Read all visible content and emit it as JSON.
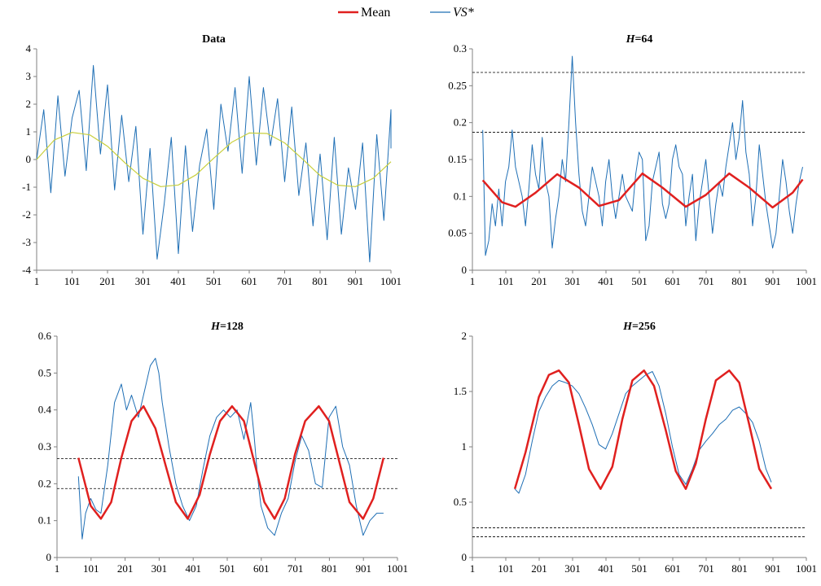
{
  "legend": {
    "items": [
      {
        "label": "Mean",
        "color": "#e0201f"
      },
      {
        "label": "VS*",
        "color": "#1f6fb5"
      }
    ]
  },
  "chart_data": [
    {
      "type": "line",
      "title": "Data",
      "title_prefix": "",
      "title_suffix": "",
      "xlabel": "",
      "ylabel": "",
      "xlim": [
        1,
        1001
      ],
      "ylim": [
        -4,
        4
      ],
      "xticks": [
        1,
        101,
        201,
        301,
        401,
        501,
        601,
        701,
        801,
        901,
        1001
      ],
      "yticks": [
        -4,
        -3,
        -2,
        -1,
        0,
        1,
        2,
        3,
        4
      ],
      "ytick_labels": [
        "-4",
        "-3",
        "-2",
        "-1",
        "0",
        "1",
        "2",
        "3",
        "4"
      ],
      "hlines": [],
      "series": [
        {
          "role": "noisy-data",
          "color": "#1f6fb5",
          "width": 1,
          "x": [
            1,
            21,
            41,
            61,
            81,
            101,
            121,
            141,
            161,
            181,
            201,
            221,
            241,
            261,
            281,
            301,
            321,
            341,
            361,
            381,
            401,
            421,
            441,
            461,
            481,
            501,
            521,
            541,
            561,
            581,
            601,
            621,
            641,
            661,
            681,
            701,
            721,
            741,
            761,
            781,
            801,
            821,
            841,
            861,
            881,
            901,
            921,
            941,
            961,
            981,
            1001,
            1021
          ],
          "y": [
            0.0,
            1.8,
            -1.2,
            2.3,
            -0.6,
            1.5,
            2.5,
            -0.4,
            3.4,
            0.2,
            2.7,
            -1.1,
            1.6,
            -0.8,
            1.2,
            -2.7,
            0.4,
            -3.6,
            -1.6,
            0.8,
            -3.4,
            0.5,
            -2.6,
            -0.2,
            1.1,
            -1.8,
            2.0,
            0.3,
            2.6,
            -0.5,
            3.0,
            -0.2,
            2.6,
            0.5,
            2.2,
            -0.8,
            1.9,
            -1.3,
            0.6,
            -2.4,
            0.2,
            -2.9,
            0.8,
            -2.7,
            -0.3,
            -1.8,
            0.6,
            -3.7,
            0.9,
            -2.2,
            1.8,
            0.4
          ]
        },
        {
          "role": "underlying-sine",
          "color": "#c8cf3c",
          "width": 1.2,
          "x": [
            1,
            51,
            101,
            151,
            201,
            251,
            301,
            351,
            401,
            451,
            501,
            551,
            601,
            651,
            701,
            751,
            801,
            851,
            901,
            951,
            1001
          ],
          "y": [
            0.0,
            0.71,
            0.98,
            0.89,
            0.48,
            -0.13,
            -0.68,
            -0.98,
            -0.92,
            -0.55,
            0.05,
            0.62,
            0.96,
            0.94,
            0.6,
            0.02,
            -0.58,
            -0.93,
            -0.98,
            -0.68,
            -0.08
          ]
        }
      ]
    },
    {
      "type": "line",
      "title": "=64",
      "title_prefix": "H",
      "title_suffix": "=64",
      "xlabel": "",
      "ylabel": "",
      "xlim": [
        1,
        1001
      ],
      "ylim": [
        0,
        0.3
      ],
      "xticks": [
        1,
        101,
        201,
        301,
        401,
        501,
        601,
        701,
        801,
        901,
        1001
      ],
      "yticks": [
        0,
        0.05,
        0.1,
        0.15,
        0.2,
        0.25,
        0.3
      ],
      "ytick_labels": [
        "0",
        "0.05",
        "0.1",
        "0.15",
        "0.2",
        "0.25",
        "0.3"
      ],
      "hlines": [
        0.187,
        0.268
      ],
      "series": [
        {
          "name": "VS*",
          "color": "#1f6fb5",
          "width": 1,
          "x": [
            32,
            40,
            50,
            60,
            70,
            80,
            90,
            100,
            110,
            120,
            130,
            140,
            150,
            160,
            170,
            180,
            190,
            200,
            210,
            220,
            230,
            240,
            250,
            260,
            270,
            280,
            290,
            300,
            310,
            320,
            330,
            340,
            350,
            360,
            370,
            380,
            390,
            400,
            410,
            420,
            430,
            440,
            450,
            460,
            470,
            480,
            490,
            500,
            510,
            520,
            530,
            540,
            550,
            560,
            570,
            580,
            590,
            600,
            610,
            620,
            630,
            640,
            650,
            660,
            670,
            680,
            690,
            700,
            710,
            720,
            730,
            740,
            750,
            760,
            770,
            780,
            790,
            800,
            810,
            820,
            830,
            840,
            850,
            860,
            870,
            880,
            890,
            900,
            910,
            920,
            930,
            940,
            950,
            960,
            970,
            980,
            990
          ],
          "y": [
            0.19,
            0.02,
            0.04,
            0.09,
            0.06,
            0.11,
            0.06,
            0.12,
            0.14,
            0.19,
            0.14,
            0.12,
            0.1,
            0.06,
            0.11,
            0.17,
            0.13,
            0.11,
            0.18,
            0.12,
            0.1,
            0.03,
            0.07,
            0.1,
            0.15,
            0.12,
            0.2,
            0.29,
            0.2,
            0.13,
            0.08,
            0.06,
            0.1,
            0.14,
            0.12,
            0.1,
            0.06,
            0.12,
            0.15,
            0.1,
            0.07,
            0.1,
            0.13,
            0.1,
            0.09,
            0.08,
            0.13,
            0.16,
            0.15,
            0.04,
            0.06,
            0.12,
            0.14,
            0.16,
            0.09,
            0.07,
            0.09,
            0.15,
            0.17,
            0.14,
            0.13,
            0.06,
            0.1,
            0.13,
            0.04,
            0.09,
            0.12,
            0.15,
            0.1,
            0.05,
            0.09,
            0.12,
            0.1,
            0.14,
            0.17,
            0.2,
            0.15,
            0.18,
            0.23,
            0.16,
            0.13,
            0.06,
            0.1,
            0.17,
            0.13,
            0.09,
            0.06,
            0.03,
            0.05,
            0.1,
            0.15,
            0.12,
            0.08,
            0.05,
            0.09,
            0.12,
            0.14
          ]
        },
        {
          "name": "Mean",
          "color": "#e0201f",
          "width": 2.5,
          "x": [
            32,
            90,
            130,
            190,
            255,
            320,
            380,
            440,
            510,
            570,
            640,
            700,
            770,
            830,
            900,
            960,
            990
          ],
          "y": [
            0.122,
            0.092,
            0.086,
            0.105,
            0.13,
            0.112,
            0.087,
            0.095,
            0.131,
            0.112,
            0.086,
            0.102,
            0.131,
            0.112,
            0.085,
            0.105,
            0.123
          ]
        }
      ]
    },
    {
      "type": "line",
      "title": "=128",
      "title_prefix": "H",
      "title_suffix": "=128",
      "xlabel": "",
      "ylabel": "",
      "xlim": [
        1,
        1001
      ],
      "ylim": [
        0,
        0.6
      ],
      "xticks": [
        1,
        101,
        201,
        301,
        401,
        501,
        601,
        701,
        801,
        901,
        1001
      ],
      "yticks": [
        0,
        0.1,
        0.2,
        0.3,
        0.4,
        0.5,
        0.6
      ],
      "ytick_labels": [
        "0",
        "0.1",
        "0.2",
        "0.3",
        "0.4",
        "0.5",
        "0.6"
      ],
      "hlines": [
        0.187,
        0.268
      ],
      "series": [
        {
          "name": "VS*",
          "color": "#1f6fb5",
          "width": 1,
          "x": [
            64,
            75,
            85,
            100,
            115,
            130,
            150,
            170,
            190,
            205,
            220,
            240,
            260,
            275,
            290,
            300,
            310,
            330,
            350,
            370,
            390,
            410,
            430,
            450,
            470,
            490,
            510,
            530,
            550,
            570,
            580,
            590,
            600,
            620,
            640,
            660,
            680,
            700,
            720,
            740,
            760,
            780,
            800,
            820,
            840,
            860,
            880,
            900,
            920,
            940,
            960
          ],
          "y": [
            0.22,
            0.05,
            0.12,
            0.16,
            0.13,
            0.12,
            0.25,
            0.42,
            0.47,
            0.4,
            0.44,
            0.38,
            0.46,
            0.52,
            0.54,
            0.5,
            0.42,
            0.3,
            0.2,
            0.14,
            0.1,
            0.14,
            0.24,
            0.33,
            0.38,
            0.4,
            0.38,
            0.4,
            0.32,
            0.42,
            0.33,
            0.22,
            0.14,
            0.08,
            0.06,
            0.12,
            0.16,
            0.26,
            0.33,
            0.29,
            0.2,
            0.19,
            0.38,
            0.41,
            0.3,
            0.25,
            0.14,
            0.06,
            0.1,
            0.12,
            0.12
          ]
        },
        {
          "name": "Mean",
          "color": "#e0201f",
          "width": 2.5,
          "x": [
            64,
            100,
            130,
            160,
            190,
            220,
            255,
            290,
            320,
            350,
            385,
            420,
            450,
            480,
            515,
            550,
            580,
            610,
            640,
            670,
            700,
            730,
            770,
            800,
            830,
            860,
            900,
            930,
            960
          ],
          "y": [
            0.27,
            0.14,
            0.105,
            0.15,
            0.27,
            0.37,
            0.41,
            0.35,
            0.25,
            0.15,
            0.105,
            0.17,
            0.28,
            0.37,
            0.41,
            0.37,
            0.26,
            0.15,
            0.105,
            0.16,
            0.28,
            0.37,
            0.41,
            0.37,
            0.26,
            0.15,
            0.105,
            0.16,
            0.27
          ]
        }
      ]
    },
    {
      "type": "line",
      "title": "=256",
      "title_prefix": "H",
      "title_suffix": "=256",
      "xlabel": "",
      "ylabel": "",
      "xlim": [
        1,
        1001
      ],
      "ylim": [
        0,
        2
      ],
      "xticks": [
        1,
        101,
        201,
        301,
        401,
        501,
        601,
        701,
        801,
        901,
        1001
      ],
      "yticks": [
        0,
        0.5,
        1,
        1.5,
        2
      ],
      "ytick_labels": [
        "0",
        "0.5",
        "1",
        "1.5",
        "2"
      ],
      "hlines": [
        0.187,
        0.268
      ],
      "series": [
        {
          "name": "VS*",
          "color": "#1f6fb5",
          "width": 1,
          "x": [
            128,
            140,
            160,
            180,
            200,
            220,
            240,
            260,
            280,
            300,
            320,
            340,
            360,
            380,
            400,
            420,
            440,
            460,
            480,
            500,
            520,
            540,
            560,
            580,
            600,
            620,
            640,
            660,
            680,
            700,
            720,
            740,
            760,
            780,
            800,
            820,
            840,
            860,
            880,
            896
          ],
          "y": [
            0.62,
            0.58,
            0.75,
            1.05,
            1.32,
            1.45,
            1.55,
            1.6,
            1.58,
            1.55,
            1.48,
            1.35,
            1.2,
            1.02,
            0.98,
            1.12,
            1.3,
            1.48,
            1.55,
            1.6,
            1.65,
            1.68,
            1.55,
            1.3,
            1.0,
            0.75,
            0.66,
            0.8,
            0.97,
            1.05,
            1.12,
            1.2,
            1.25,
            1.33,
            1.36,
            1.3,
            1.22,
            1.05,
            0.8,
            0.68
          ]
        },
        {
          "name": "Mean",
          "color": "#e0201f",
          "width": 2.5,
          "x": [
            128,
            160,
            200,
            230,
            260,
            290,
            320,
            350,
            385,
            420,
            450,
            480,
            515,
            545,
            580,
            610,
            640,
            670,
            700,
            730,
            770,
            800,
            830,
            860,
            896
          ],
          "y": [
            0.62,
            0.95,
            1.45,
            1.65,
            1.69,
            1.58,
            1.2,
            0.8,
            0.62,
            0.82,
            1.25,
            1.6,
            1.69,
            1.55,
            1.15,
            0.78,
            0.62,
            0.85,
            1.25,
            1.6,
            1.69,
            1.58,
            1.2,
            0.8,
            0.62
          ]
        }
      ]
    }
  ]
}
